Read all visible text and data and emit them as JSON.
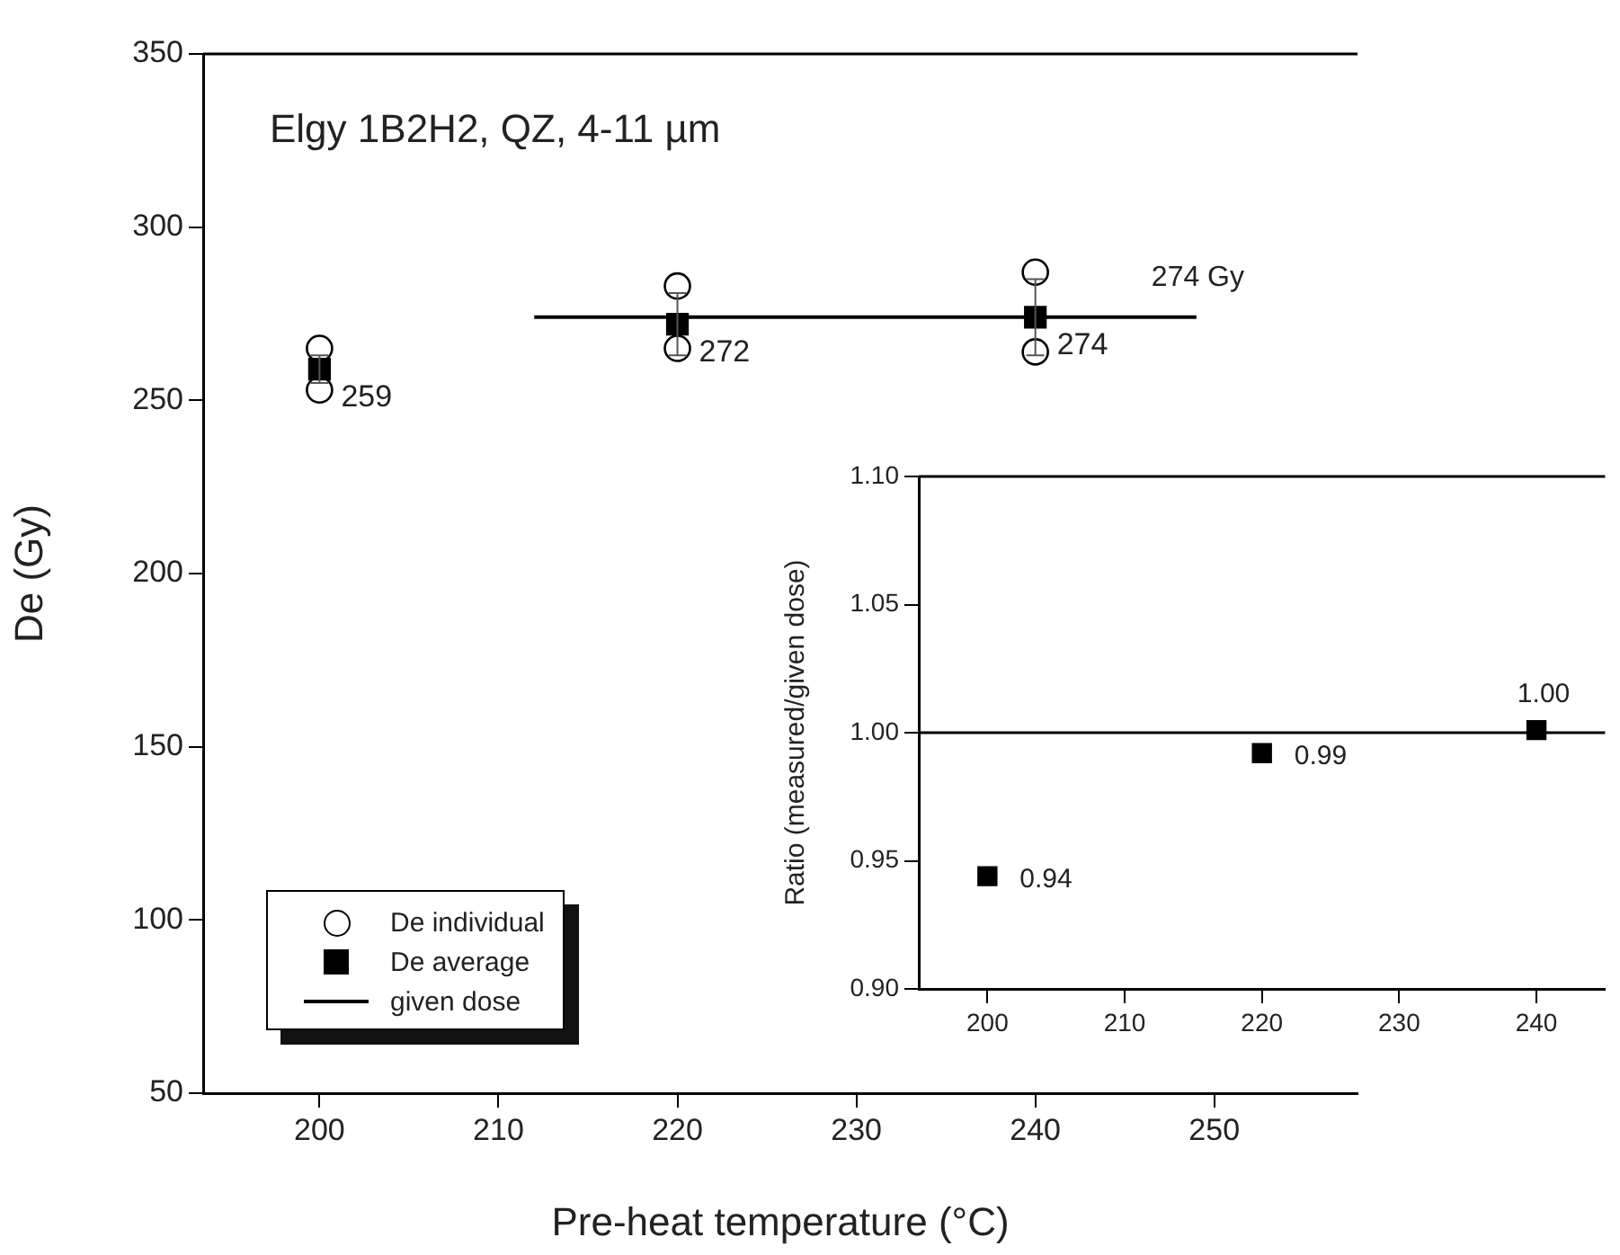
{
  "chart_data": [
    {
      "type": "scatter",
      "title": "Elgy 1B2H2, QZ, 4-11 µm",
      "xlabel": "Pre-heat temperature (°C)",
      "ylabel": "De (Gy)",
      "xlim": [
        193.5,
        258
      ],
      "xticks": [
        200,
        210,
        220,
        230,
        240,
        250
      ],
      "ylim": [
        50,
        350
      ],
      "yticks": [
        50,
        100,
        150,
        200,
        250,
        300,
        350
      ],
      "grid": false,
      "legend": "bottom left",
      "series": [
        {
          "name": "De individual",
          "type": "scatter",
          "marker": "circle",
          "color": "#000000",
          "x": [
            200,
            200,
            220,
            220,
            240,
            240
          ],
          "values": [
            265,
            253,
            283,
            265,
            287,
            264
          ]
        },
        {
          "name": "De average",
          "type": "scatter",
          "marker": "square",
          "color": "#000000",
          "x": [
            200,
            220,
            240
          ],
          "values": [
            259,
            272,
            274
          ],
          "errors": [
            4,
            9,
            11
          ],
          "value_labels": [
            "259",
            "272",
            "274"
          ]
        },
        {
          "name": "given dose",
          "type": "line",
          "marker": "none",
          "color": "#000000",
          "x": [
            212,
            249
          ],
          "values": [
            274,
            274
          ]
        }
      ],
      "annotations": [
        "274 Gy"
      ]
    },
    {
      "type": "scatter",
      "ylabel": "Ratio (measured/given dose)",
      "xlim": [
        195,
        245
      ],
      "xticks": [
        200,
        210,
        220,
        230,
        240
      ],
      "ylim": [
        0.9,
        1.1
      ],
      "yticks": [
        {
          "value": 0.9,
          "label": "0.90"
        },
        {
          "value": 0.95,
          "label": "0.95"
        },
        {
          "value": 1.0,
          "label": "1.00"
        },
        {
          "value": 1.05,
          "label": "1.05"
        },
        {
          "value": 1.1,
          "label": "1.10"
        }
      ],
      "grid": false,
      "legend": false,
      "ref_lines": [
        {
          "axis": "y",
          "value": 1.0,
          "color": "#000000"
        }
      ],
      "series": [
        {
          "type": "scatter",
          "marker": "square",
          "color": "#000000",
          "x": [
            200,
            220,
            240
          ],
          "values": [
            0.944,
            0.992,
            1.001
          ],
          "value_labels": [
            "0.94",
            "0.99",
            "1.00"
          ]
        }
      ]
    }
  ]
}
